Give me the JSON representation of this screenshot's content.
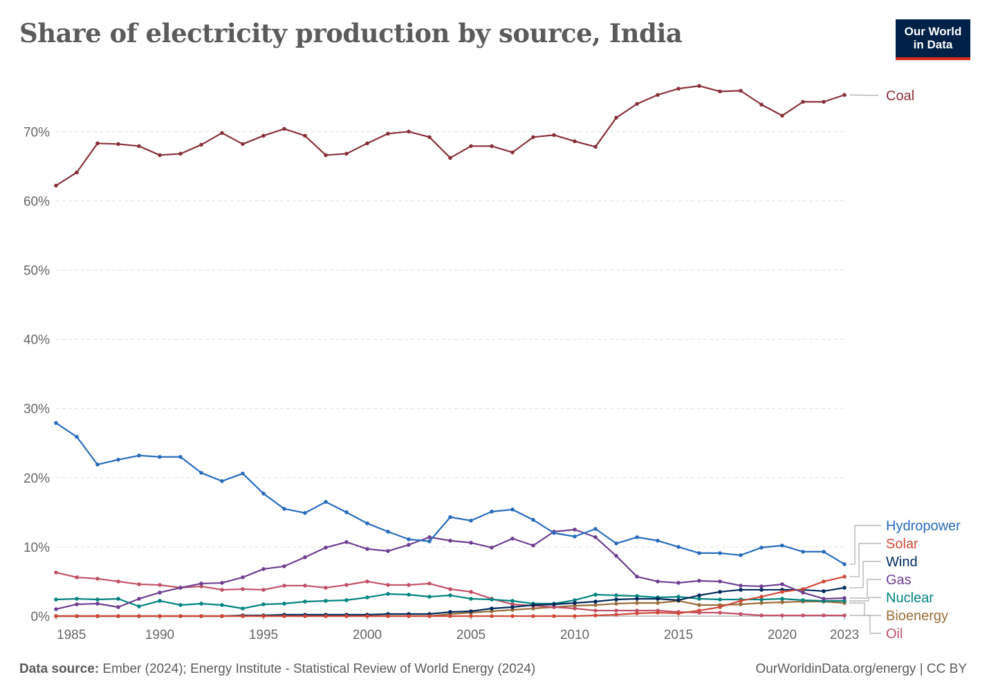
{
  "header": {
    "title": "Share of electricity production by source, India"
  },
  "logo": {
    "line1": "Our World",
    "line2": "in Data"
  },
  "footer": {
    "source_label": "Data source:",
    "source_text": "Ember (2024); Energy Institute - Statistical Review of World Energy (2024)",
    "credit": "OurWorldinData.org/energy | CC BY"
  },
  "chart_data": {
    "type": "line",
    "title": "Share of electricity production by source, India",
    "xlabel": "",
    "ylabel": "",
    "xlim": [
      1985,
      2023
    ],
    "ylim": [
      0,
      78
    ],
    "y_ticks": [
      0,
      10,
      20,
      30,
      40,
      50,
      60,
      70
    ],
    "y_tick_labels": [
      "0%",
      "10%",
      "20%",
      "30%",
      "40%",
      "50%",
      "60%",
      "70%"
    ],
    "x_ticks": [
      1985,
      1990,
      1995,
      2000,
      2005,
      2010,
      2015,
      2020,
      2023
    ],
    "x_tick_labels": [
      "1985",
      "1990",
      "1995",
      "2000",
      "2005",
      "2010",
      "2015",
      "2020",
      "2023"
    ],
    "grid": "horizontal dashed",
    "legend": "right (line-end labels)",
    "x": [
      1985,
      1986,
      1987,
      1988,
      1989,
      1990,
      1991,
      1992,
      1993,
      1994,
      1995,
      1996,
      1997,
      1998,
      1999,
      2000,
      2001,
      2002,
      2003,
      2004,
      2005,
      2006,
      2007,
      2008,
      2009,
      2010,
      2011,
      2012,
      2013,
      2014,
      2015,
      2016,
      2017,
      2018,
      2019,
      2020,
      2021,
      2022,
      2023
    ],
    "series": [
      {
        "name": "Coal",
        "color": "#883039",
        "values": [
          62.2,
          64.1,
          68.3,
          68.2,
          67.9,
          66.6,
          66.8,
          68.1,
          69.8,
          68.2,
          69.4,
          70.4,
          69.4,
          66.6,
          66.8,
          68.3,
          69.7,
          70.0,
          69.2,
          66.2,
          67.9,
          67.9,
          67.0,
          69.2,
          69.5,
          68.6,
          67.8,
          72.0,
          74.0,
          75.3,
          76.2,
          76.6,
          75.8,
          75.9,
          73.9,
          72.3,
          74.3,
          74.3,
          75.3
        ]
      },
      {
        "name": "Hydropower",
        "color": "#286bbb",
        "values": [
          27.9,
          25.9,
          21.9,
          22.6,
          23.2,
          23.0,
          23.0,
          20.7,
          19.5,
          20.6,
          17.7,
          15.5,
          14.9,
          16.5,
          15.0,
          13.4,
          12.2,
          11.1,
          10.8,
          14.3,
          13.8,
          15.1,
          15.4,
          13.9,
          12.0,
          11.5,
          12.6,
          10.5,
          11.4,
          10.9,
          10.0,
          9.1,
          9.1,
          8.8,
          9.9,
          10.2,
          9.3,
          9.3,
          7.5
        ]
      },
      {
        "name": "Solar",
        "color": "#cf4a3a",
        "values": [
          0,
          0,
          0,
          0,
          0,
          0,
          0,
          0,
          0,
          0,
          0,
          0,
          0,
          0,
          0,
          0,
          0,
          0,
          0,
          0,
          0,
          0,
          0,
          0,
          0,
          0,
          0.1,
          0.2,
          0.4,
          0.5,
          0.4,
          0.8,
          1.3,
          2.2,
          2.8,
          3.5,
          3.9,
          5.0,
          5.7
        ]
      },
      {
        "name": "Wind",
        "color": "#00295b",
        "values": [
          0,
          0,
          0,
          0,
          0,
          0,
          0,
          0,
          0,
          0.1,
          0.1,
          0.2,
          0.2,
          0.2,
          0.2,
          0.2,
          0.3,
          0.3,
          0.3,
          0.6,
          0.7,
          1.1,
          1.3,
          1.6,
          1.7,
          1.9,
          2.1,
          2.4,
          2.5,
          2.5,
          2.3,
          3.0,
          3.5,
          3.8,
          3.8,
          3.8,
          3.8,
          3.6,
          4.1
        ]
      },
      {
        "name": "Gas",
        "color": "#6d3e91",
        "values": [
          1.0,
          1.7,
          1.8,
          1.3,
          2.5,
          3.4,
          4.1,
          4.7,
          4.8,
          5.6,
          6.8,
          7.2,
          8.5,
          9.9,
          10.7,
          9.7,
          9.4,
          10.3,
          11.4,
          10.9,
          10.6,
          9.9,
          11.2,
          10.2,
          12.2,
          12.5,
          11.4,
          8.7,
          5.7,
          5.0,
          4.8,
          5.1,
          5.0,
          4.4,
          4.3,
          4.6,
          3.4,
          2.5,
          2.6
        ]
      },
      {
        "name": "Nuclear",
        "color": "#00847e",
        "values": [
          2.4,
          2.5,
          2.4,
          2.5,
          1.4,
          2.2,
          1.6,
          1.8,
          1.6,
          1.1,
          1.7,
          1.8,
          2.1,
          2.2,
          2.3,
          2.7,
          3.2,
          3.1,
          2.8,
          3.0,
          2.5,
          2.4,
          2.2,
          1.8,
          1.8,
          2.3,
          3.1,
          3.0,
          2.9,
          2.7,
          2.8,
          2.5,
          2.4,
          2.4,
          2.4,
          2.5,
          2.3,
          2.2,
          2.2
        ]
      },
      {
        "name": "Bioenergy",
        "color": "#996d39",
        "values": [
          0,
          0,
          0,
          0,
          0,
          0,
          0,
          0,
          0,
          0,
          0,
          0,
          0,
          0,
          0,
          0,
          0,
          0,
          0,
          0.3,
          0.5,
          0.7,
          0.9,
          1.1,
          1.3,
          1.5,
          1.6,
          1.8,
          1.9,
          1.9,
          2.2,
          1.6,
          1.6,
          1.7,
          1.9,
          2.0,
          2.1,
          2.1,
          1.9
        ]
      },
      {
        "name": "Oil",
        "color": "#c15065",
        "values": [
          6.3,
          5.6,
          5.4,
          5.0,
          4.6,
          4.5,
          4.1,
          4.3,
          3.8,
          3.9,
          3.8,
          4.4,
          4.4,
          4.1,
          4.5,
          5.0,
          4.5,
          4.5,
          4.7,
          3.9,
          3.5,
          2.5,
          1.7,
          1.5,
          1.3,
          1.1,
          0.8,
          0.8,
          0.8,
          0.8,
          0.6,
          0.5,
          0.5,
          0.3,
          0.1,
          0.1,
          0.1,
          0.1,
          0.1
        ]
      }
    ]
  }
}
